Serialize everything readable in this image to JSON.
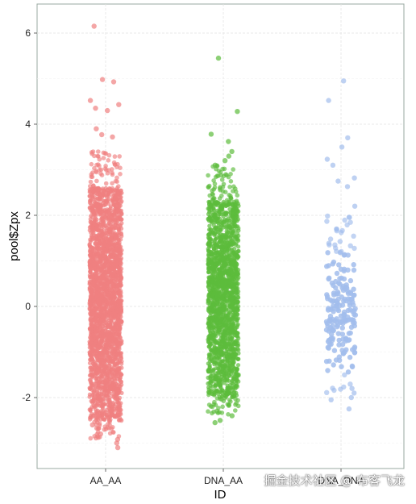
{
  "chart_data": {
    "type": "scatter",
    "subtype": "jitter-strip",
    "title": "",
    "xlabel": "ID",
    "ylabel": "pool$Zpx",
    "categories": [
      "AA_AA",
      "DNA_AA",
      "DNA_DNA"
    ],
    "ylim": [
      -3.5,
      6.5
    ],
    "yticks": [
      -2,
      0,
      2,
      4,
      6
    ],
    "grid": true,
    "legend": "none",
    "series": [
      {
        "category": "AA_AA",
        "color": "#f08080",
        "y_range": [
          -3.1,
          6.15
        ],
        "dense_range": [
          -2.5,
          2.6
        ],
        "outliers": [
          6.15,
          4.98,
          4.93,
          4.52,
          4.43,
          4.35,
          4.3,
          3.9,
          3.77,
          3.72,
          -2.6,
          -2.8,
          -2.92,
          -3.0,
          -3.1
        ]
      },
      {
        "category": "DNA_AA",
        "color": "#5cbc3c",
        "y_range": [
          -2.55,
          5.45
        ],
        "dense_range": [
          -2.0,
          2.3
        ],
        "outliers": [
          5.45,
          4.28,
          3.78,
          3.62,
          3.4,
          3.3,
          3.2,
          3.1,
          -2.3,
          -2.4,
          -2.5,
          -2.55
        ]
      },
      {
        "category": "DNA_DNA",
        "color": "#a2bdec",
        "y_range": [
          -2.25,
          4.95
        ],
        "dense_range": [
          -1.5,
          1.2
        ],
        "outliers": [
          4.95,
          4.52,
          3.7,
          3.5,
          3.23,
          3.1,
          2.82,
          2.75,
          2.63,
          2.2,
          -1.8,
          -1.9,
          -2.0,
          -2.05,
          -2.25
        ]
      }
    ]
  },
  "watermark": "掘金技术社区 @ 布客飞龙"
}
